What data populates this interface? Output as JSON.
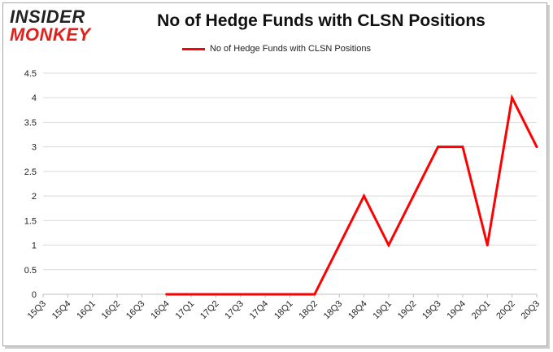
{
  "brand": {
    "line1": "INSIDER",
    "line2": "MONKEY"
  },
  "chart_data": {
    "type": "line",
    "title": "No of Hedge Funds with CLSN Positions",
    "xlabel": "",
    "ylabel": "",
    "categories": [
      "15Q3",
      "15Q4",
      "16Q1",
      "16Q2",
      "16Q3",
      "16Q4",
      "17Q1",
      "17Q2",
      "17Q3",
      "17Q4",
      "18Q1",
      "18Q2",
      "18Q3",
      "18Q4",
      "19Q1",
      "19Q2",
      "19Q3",
      "19Q4",
      "20Q1",
      "20Q2",
      "20Q3"
    ],
    "series": [
      {
        "name": "No of Hedge Funds with CLSN Positions",
        "color": "#ff0000",
        "values": [
          null,
          null,
          null,
          null,
          null,
          0,
          0,
          0,
          0,
          0,
          0,
          0,
          1,
          2,
          1,
          2,
          3,
          3,
          1,
          4,
          3
        ]
      }
    ],
    "ylim": [
      0,
      4.5
    ],
    "yticks": [
      "0",
      "0.5",
      "1",
      "1.5",
      "2",
      "2.5",
      "3",
      "3.5",
      "4",
      "4.5"
    ],
    "grid": true,
    "legend": "top-center"
  }
}
